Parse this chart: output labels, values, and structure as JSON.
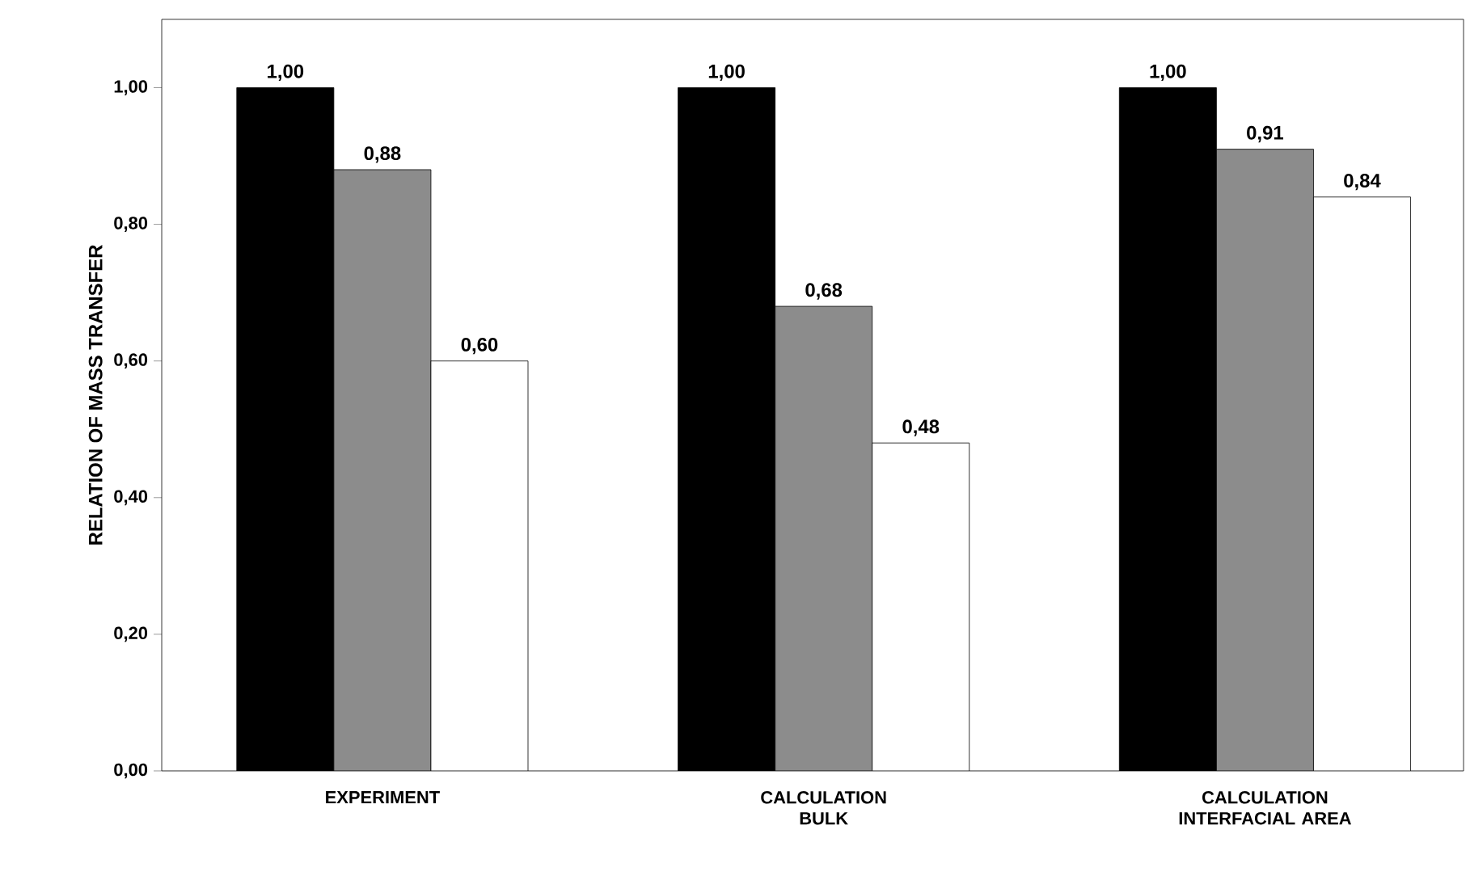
{
  "chart_data": {
    "type": "bar",
    "ylabel": "RELATION OF MASS TRANSFER",
    "categories": [
      "EXPERIMENT",
      "CALCULATION BULK",
      "CALCULATION INTERFACIAL AREA"
    ],
    "series": [
      {
        "color": "#000000",
        "values": [
          1.0,
          1.0,
          1.0
        ],
        "value_labels": [
          "1,00",
          "1,00",
          "1,00"
        ]
      },
      {
        "color": "#8c8c8c",
        "values": [
          0.88,
          0.68,
          0.91
        ],
        "value_labels": [
          "0,88",
          "0,68",
          "0,91"
        ]
      },
      {
        "color": "#ffffff",
        "values": [
          0.6,
          0.48,
          0.84
        ],
        "value_labels": [
          "0,60",
          "0,48",
          "0,84"
        ]
      }
    ],
    "ylim": [
      0,
      1.1
    ],
    "yticks": [
      {
        "value": 0,
        "label": "0,00"
      },
      {
        "value": 0.2,
        "label": "0,20"
      },
      {
        "value": 0.4,
        "label": "0,40"
      },
      {
        "value": 0.6,
        "label": "0,60"
      },
      {
        "value": 0.8,
        "label": "0,80"
      },
      {
        "value": 1.0,
        "label": "1,00"
      }
    ],
    "grid": false
  }
}
